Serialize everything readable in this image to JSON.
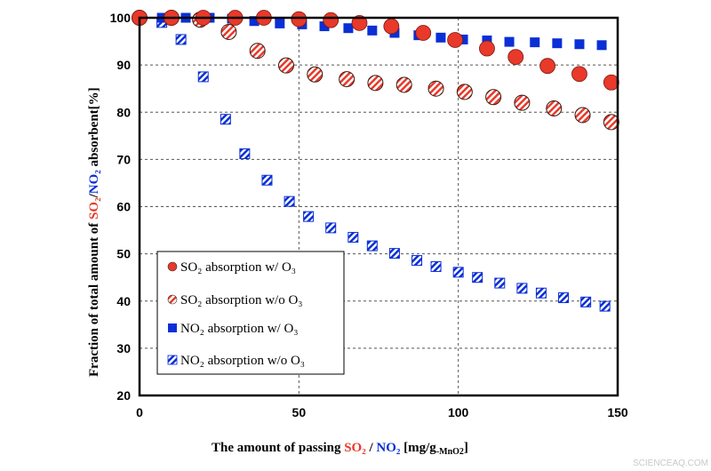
{
  "chart_data": {
    "type": "scatter",
    "xlabel": {
      "prefix": "The amount of passing ",
      "so2": "SO₂",
      "sep": " / ",
      "no2": "NO₂",
      "unit": "  [mg/g",
      "unit_sub": "-MnO2",
      "unit_end": "]"
    },
    "ylabel": {
      "prefix": "Fraction of total amount of ",
      "so2": "SO₂",
      "sep": "/",
      "no2": "NO₂",
      "suffix": " absorbent[%]"
    },
    "xlim": [
      0,
      150
    ],
    "ylim": [
      20,
      100
    ],
    "xticks": [
      "0",
      "50",
      "100",
      "150"
    ],
    "yticks": [
      "20",
      "30",
      "40",
      "50",
      "60",
      "70",
      "80",
      "90",
      "100"
    ],
    "grid": true,
    "legend_position": "bottom-left",
    "colors": {
      "so2": "#e8392a",
      "no2": "#0a2fd6",
      "so2_label": "#e8392a",
      "no2_label": "#0a2fd6"
    },
    "series": [
      {
        "name": "SO₂ absorption w/ O₃",
        "marker": "circle-filled",
        "color": "#e8392a",
        "x": [
          0,
          10,
          20,
          30,
          39,
          50,
          60,
          69,
          79,
          89,
          99,
          109,
          118,
          128,
          138,
          148
        ],
        "y": [
          100,
          100,
          100,
          100,
          100,
          99.7,
          99.5,
          98.9,
          98.2,
          96.8,
          95.3,
          93.5,
          91.7,
          89.8,
          88.1,
          86.3
        ]
      },
      {
        "name": "SO₂ absorption w/o O₃",
        "marker": "circle-hatched",
        "color": "#e8392a",
        "x": [
          0,
          10,
          19,
          28,
          37,
          46,
          55,
          65,
          74,
          83,
          93,
          102,
          111,
          120,
          130,
          139,
          148
        ],
        "y": [
          100,
          100,
          99.6,
          97,
          93,
          89.9,
          88,
          87,
          86.2,
          85.8,
          85,
          84.3,
          83.2,
          82,
          80.8,
          79.4,
          77.9
        ]
      },
      {
        "name": "NO₂  absorption w/ O₃",
        "marker": "square-filled",
        "color": "#0a2fd6",
        "x": [
          0,
          7,
          14.5,
          22,
          29,
          36,
          44,
          51,
          58,
          65.5,
          73,
          80,
          87.5,
          94.5,
          101.5,
          109,
          116,
          124,
          131,
          138,
          145
        ],
        "y": [
          100,
          100,
          100,
          100,
          99.8,
          99.3,
          98.8,
          98.6,
          98.2,
          97.8,
          97.3,
          96.8,
          96.3,
          95.8,
          95.4,
          95.2,
          94.9,
          94.8,
          94.6,
          94.4,
          94.2
        ]
      },
      {
        "name": "NO₂ absorption w/o O₃",
        "marker": "square-hatched",
        "color": "#0a2fd6",
        "x": [
          0,
          7,
          13,
          20,
          27,
          33,
          40,
          47,
          53,
          60,
          67,
          73,
          80,
          87,
          93,
          100,
          106,
          113,
          120,
          126,
          133,
          140,
          146
        ],
        "y": [
          100,
          99,
          95.4,
          87.5,
          78.5,
          71.2,
          65.6,
          61.1,
          57.9,
          55.5,
          53.5,
          51.7,
          50.1,
          48.6,
          47.3,
          46.1,
          45,
          43.8,
          42.7,
          41.7,
          40.7,
          39.8,
          38.9
        ]
      }
    ]
  },
  "watermark": "SCIENCEAQ.COM"
}
